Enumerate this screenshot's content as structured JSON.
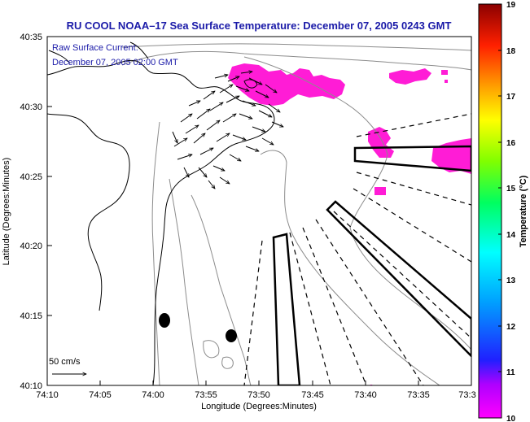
{
  "title": "RU COOL  NOAA–17  Sea Surface Temperature:  December 07, 2005 0243 GMT",
  "current_legend": {
    "line1": "Raw Surface Current:",
    "line2": "December 07, 2005 02:00 GMT"
  },
  "scale_label": "50 cm/s",
  "axes": {
    "xlabel": "Longitude (Degrees:Minutes)",
    "ylabel": "Latitude (Degrees:Minutes)",
    "xticks": [
      "74:10",
      "74:05",
      "74:00",
      "73:55",
      "73:50",
      "73:45",
      "73:40",
      "73:35",
      "73:3"
    ],
    "yticks": [
      "40:35",
      "40:30",
      "40:25",
      "40:20",
      "40:15",
      "40:10"
    ]
  },
  "colorbar": {
    "label": "Temperature (°C)",
    "ticks": [
      "19",
      "18",
      "17",
      "16",
      "15",
      "14",
      "13",
      "12",
      "11",
      "10"
    ],
    "min": 10,
    "max": 19
  },
  "colors": {
    "title": "#1a1aa8",
    "sst_patch": "#ff1cd6",
    "coast": "#000000",
    "bathymetry": "#8c8c8c"
  }
}
